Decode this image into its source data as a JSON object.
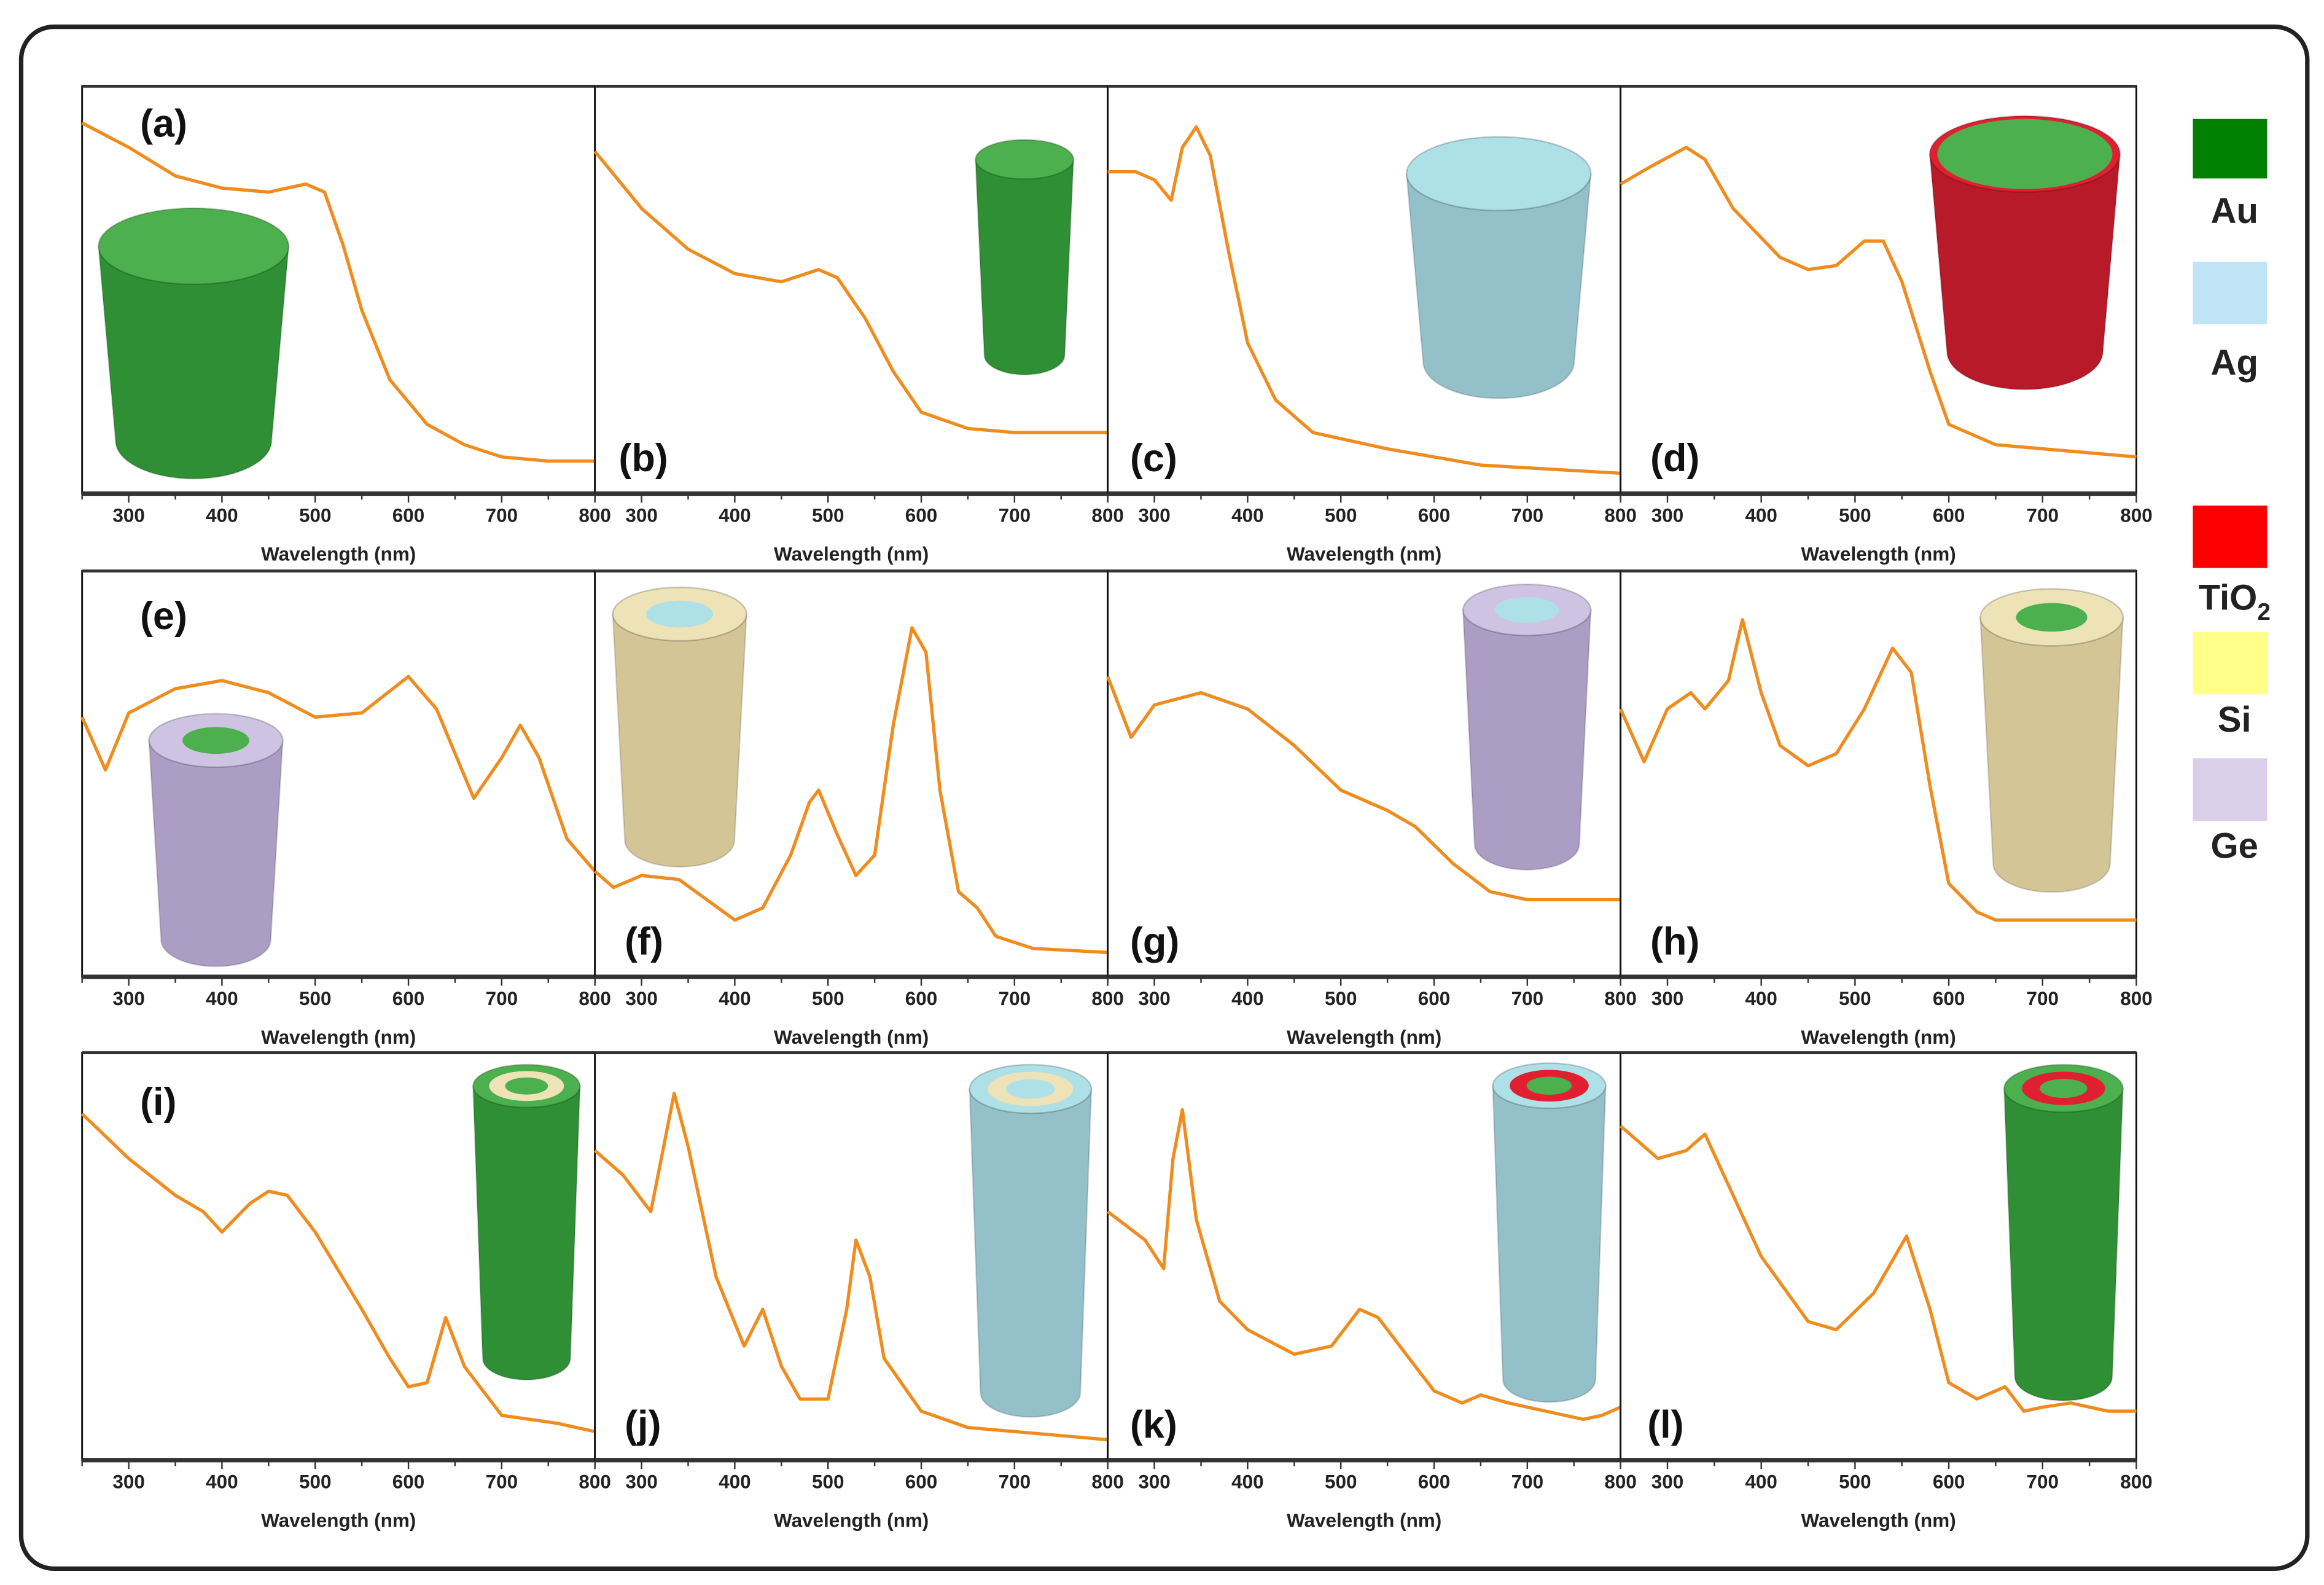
{
  "chart_data": {
    "type": "line",
    "layout": "3x4 panel grid",
    "xlabel": "Wavelength (nm)",
    "xlim": [
      250,
      800
    ],
    "xticks": [
      300,
      400,
      500,
      600,
      700,
      800
    ],
    "ylabel": "",
    "y_units": "normalized (arbitrary)",
    "line_color": "#f08c1e",
    "legend": {
      "placement": "right",
      "items": [
        {
          "label": "Au",
          "color": "#007f00"
        },
        {
          "label": "Ag",
          "color": "#bfe4f6"
        },
        {
          "label": "TiO2",
          "label_main": "TiO",
          "label_sub": "2",
          "color": "#ff0000"
        },
        {
          "label": "Si",
          "color": "#ffff8a"
        },
        {
          "label": "Ge",
          "color": "#d9cfe8"
        }
      ]
    },
    "panels": [
      {
        "label": "(a)",
        "layers": [
          "Au"
        ],
        "x": [
          250,
          300,
          350,
          400,
          450,
          490,
          510,
          530,
          550,
          580,
          620,
          660,
          700,
          750,
          800
        ],
        "y": [
          0.91,
          0.85,
          0.78,
          0.75,
          0.74,
          0.76,
          0.74,
          0.61,
          0.45,
          0.28,
          0.17,
          0.12,
          0.09,
          0.08,
          0.08
        ]
      },
      {
        "label": "(b)",
        "layers": [
          "Au"
        ],
        "x": [
          250,
          300,
          350,
          400,
          450,
          490,
          510,
          540,
          570,
          600,
          650,
          700,
          800
        ],
        "y": [
          0.84,
          0.7,
          0.6,
          0.54,
          0.52,
          0.55,
          0.53,
          0.43,
          0.3,
          0.2,
          0.16,
          0.15,
          0.15
        ]
      },
      {
        "label": "(c)",
        "layers": [
          "Ag"
        ],
        "x": [
          250,
          280,
          300,
          318,
          330,
          345,
          360,
          380,
          400,
          430,
          470,
          550,
          650,
          800
        ],
        "y": [
          0.79,
          0.79,
          0.77,
          0.72,
          0.85,
          0.9,
          0.83,
          0.59,
          0.37,
          0.23,
          0.15,
          0.11,
          0.07,
          0.05
        ]
      },
      {
        "label": "(d)",
        "layers": [
          "TiO2",
          "Au"
        ],
        "x": [
          250,
          280,
          320,
          340,
          370,
          420,
          450,
          480,
          510,
          530,
          550,
          580,
          600,
          650,
          800
        ],
        "y": [
          0.76,
          0.8,
          0.85,
          0.82,
          0.7,
          0.58,
          0.55,
          0.56,
          0.62,
          0.62,
          0.52,
          0.3,
          0.17,
          0.12,
          0.09
        ]
      },
      {
        "label": "(e)",
        "layers": [
          "Ge",
          "Au"
        ],
        "x": [
          250,
          275,
          300,
          350,
          400,
          450,
          500,
          550,
          600,
          630,
          670,
          700,
          720,
          740,
          770,
          800
        ],
        "y": [
          0.64,
          0.51,
          0.65,
          0.71,
          0.73,
          0.7,
          0.64,
          0.65,
          0.74,
          0.66,
          0.44,
          0.54,
          0.62,
          0.54,
          0.34,
          0.26
        ]
      },
      {
        "label": "(f)",
        "layers": [
          "Si",
          "Ag"
        ],
        "x": [
          250,
          270,
          300,
          340,
          370,
          400,
          430,
          460,
          480,
          490,
          510,
          530,
          550,
          570,
          590,
          605,
          620,
          640,
          660,
          680,
          720,
          800
        ],
        "y": [
          0.26,
          0.22,
          0.25,
          0.24,
          0.19,
          0.14,
          0.17,
          0.3,
          0.43,
          0.46,
          0.35,
          0.25,
          0.3,
          0.62,
          0.86,
          0.8,
          0.46,
          0.21,
          0.17,
          0.1,
          0.07,
          0.06
        ]
      },
      {
        "label": "(g)",
        "layers": [
          "Ge",
          "Ag"
        ],
        "x": [
          250,
          275,
          300,
          350,
          400,
          450,
          500,
          550,
          580,
          620,
          660,
          700,
          800
        ],
        "y": [
          0.74,
          0.59,
          0.67,
          0.7,
          0.66,
          0.57,
          0.46,
          0.41,
          0.37,
          0.28,
          0.21,
          0.19,
          0.19
        ]
      },
      {
        "label": "(h)",
        "layers": [
          "Si",
          "Au"
        ],
        "x": [
          250,
          275,
          300,
          325,
          340,
          365,
          380,
          400,
          420,
          450,
          480,
          510,
          540,
          560,
          580,
          600,
          630,
          650,
          700,
          800
        ],
        "y": [
          0.66,
          0.53,
          0.66,
          0.7,
          0.66,
          0.73,
          0.88,
          0.7,
          0.57,
          0.52,
          0.55,
          0.66,
          0.81,
          0.75,
          0.47,
          0.23,
          0.16,
          0.14,
          0.14,
          0.14
        ]
      },
      {
        "label": "(i)",
        "layers": [
          "Au",
          "Si",
          "Au"
        ],
        "x": [
          250,
          300,
          350,
          380,
          400,
          430,
          450,
          470,
          500,
          550,
          580,
          600,
          620,
          640,
          660,
          700,
          730,
          760,
          800
        ],
        "y": [
          0.85,
          0.74,
          0.65,
          0.61,
          0.56,
          0.63,
          0.66,
          0.65,
          0.56,
          0.37,
          0.25,
          0.18,
          0.19,
          0.35,
          0.23,
          0.11,
          0.1,
          0.09,
          0.07
        ]
      },
      {
        "label": "(j)",
        "layers": [
          "Ag",
          "Si",
          "Ag"
        ],
        "x": [
          250,
          280,
          310,
          335,
          350,
          380,
          410,
          430,
          450,
          470,
          500,
          520,
          530,
          545,
          560,
          600,
          650,
          700,
          800
        ],
        "y": [
          0.76,
          0.7,
          0.61,
          0.9,
          0.77,
          0.45,
          0.28,
          0.37,
          0.23,
          0.15,
          0.15,
          0.37,
          0.54,
          0.45,
          0.25,
          0.12,
          0.08,
          0.07,
          0.05
        ]
      },
      {
        "label": "(k)",
        "layers": [
          "Ag",
          "TiO2",
          "Au"
        ],
        "x": [
          250,
          290,
          310,
          320,
          330,
          345,
          370,
          400,
          450,
          490,
          520,
          540,
          570,
          600,
          630,
          650,
          680,
          720,
          760,
          780,
          800
        ],
        "y": [
          0.61,
          0.54,
          0.47,
          0.74,
          0.86,
          0.59,
          0.39,
          0.32,
          0.26,
          0.28,
          0.37,
          0.35,
          0.26,
          0.17,
          0.14,
          0.16,
          0.14,
          0.12,
          0.1,
          0.11,
          0.13
        ]
      },
      {
        "label": "(l)",
        "layers": [
          "Au",
          "TiO2",
          "Au"
        ],
        "x": [
          250,
          290,
          320,
          340,
          360,
          400,
          450,
          480,
          520,
          555,
          580,
          600,
          630,
          660,
          680,
          700,
          730,
          770,
          800
        ],
        "y": [
          0.82,
          0.74,
          0.76,
          0.8,
          0.7,
          0.5,
          0.34,
          0.32,
          0.41,
          0.55,
          0.37,
          0.19,
          0.15,
          0.18,
          0.12,
          0.13,
          0.14,
          0.12,
          0.12
        ]
      }
    ]
  }
}
